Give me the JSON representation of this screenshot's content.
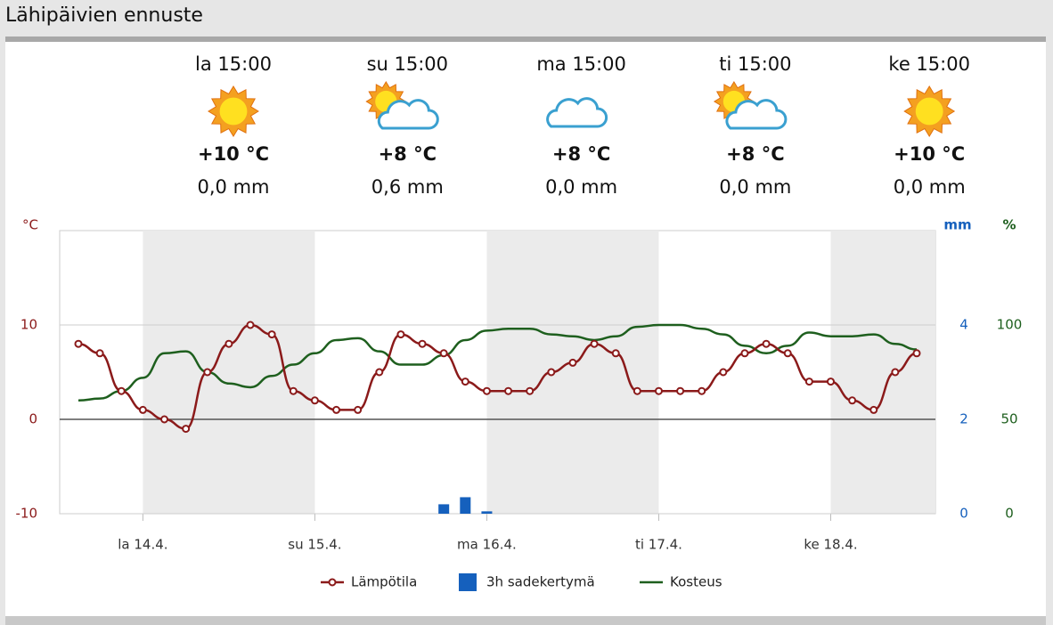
{
  "header": {
    "title": "Lähipäivien ennuste"
  },
  "forecast": [
    {
      "time": "la 15:00",
      "temp": "+10 °C",
      "rain": "0,0 mm"
    },
    {
      "time": "su 15:00",
      "temp": "+8 °C",
      "rain": "0,6 mm"
    },
    {
      "time": "ma 15:00",
      "temp": "+8 °C",
      "rain": "0,0 mm"
    },
    {
      "time": "ti 15:00",
      "temp": "+8 °C",
      "rain": "0,0 mm"
    },
    {
      "time": "ke 15:00",
      "temp": "+10 °C",
      "rain": "0,0 mm"
    }
  ],
  "chart_data": {
    "type": "line",
    "y_label": "°C",
    "y2_label": "mm",
    "y3_label": "%",
    "categories": [
      null,
      null,
      null,
      "la 14.4.",
      null,
      null,
      null,
      null,
      null,
      null,
      null,
      "su 15.4.",
      null,
      null,
      null,
      null,
      null,
      null,
      null,
      "ma 16.4.",
      null,
      null,
      null,
      null,
      null,
      null,
      null,
      "ti 17.4.",
      null,
      null,
      null,
      null,
      null,
      null,
      null,
      "ke 18.4.",
      null,
      null,
      null,
      null
    ],
    "ylim": [
      -10,
      20
    ],
    "yticks": [
      -10,
      0,
      10
    ],
    "y2lim": [
      0,
      6
    ],
    "y2ticks": [
      0,
      2,
      4
    ],
    "y3lim": [
      0,
      150
    ],
    "y3ticks": [
      0,
      50,
      100
    ],
    "series": [
      {
        "name": "Lämpötila",
        "type": "line",
        "color": "#8b1a1a",
        "values": [
          8,
          7,
          3,
          1,
          0,
          -1,
          5,
          8,
          10,
          9,
          3,
          2,
          1,
          1,
          5,
          9,
          8,
          7,
          4,
          3,
          3,
          3,
          5,
          6,
          8,
          7,
          3,
          3,
          3,
          3,
          5,
          7,
          8,
          7,
          4,
          4,
          2,
          1,
          5,
          7
        ]
      },
      {
        "name": "3h sadekertymä",
        "type": "bar",
        "axis": "y2",
        "color": "#1560bd",
        "values": [
          0,
          0,
          0,
          0,
          0,
          0,
          0,
          0,
          0,
          0,
          0,
          0,
          0,
          0,
          0,
          0,
          0,
          0.2,
          0.35,
          0.05,
          0,
          0,
          0,
          0,
          0,
          0,
          0,
          0,
          0,
          0,
          0,
          0,
          0,
          0,
          0,
          0,
          0,
          0,
          0,
          0
        ]
      },
      {
        "name": "Kosteus",
        "type": "line",
        "axis": "y3",
        "color": "#1e5f1e",
        "values": [
          60,
          61,
          65,
          72,
          85,
          86,
          75,
          69,
          67,
          73,
          79,
          85,
          92,
          93,
          86,
          79,
          79,
          84,
          92,
          97,
          98,
          98,
          95,
          94,
          92,
          94,
          99,
          100,
          100,
          98,
          95,
          89,
          85,
          89,
          96,
          94,
          94,
          95,
          90,
          87
        ]
      }
    ]
  }
}
